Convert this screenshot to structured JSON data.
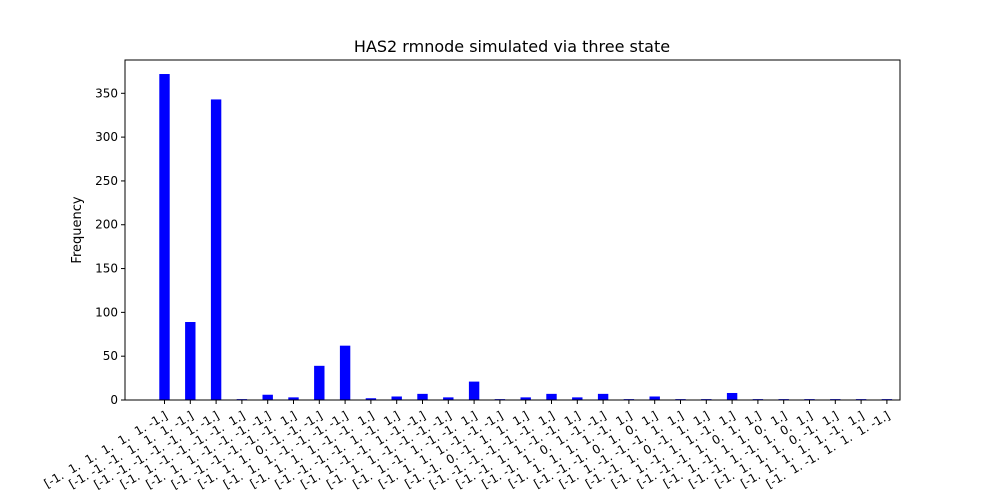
{
  "chart_data": {
    "type": "bar",
    "title": "HAS2 rmnode simulated via three state",
    "xlabel": "",
    "ylabel": "Frequency",
    "ylim": [
      0,
      388
    ],
    "yticks": [
      0,
      50,
      100,
      150,
      200,
      250,
      300,
      350
    ],
    "bar_color": "#0000ff",
    "grid": false,
    "categories": [
      "[-1.  1.  1.  1.  1.  1. -1.]",
      "[-1. -1. -1.  1.  1.  1. -1.]",
      "[-1. -1. -1. -1. -1.  1. -1.]",
      "[-1.  1. -1. -1. -1. -1.  1.]",
      "[-1.  1.  1. -1. -1. -1. -1.]",
      "[-1. -1. -1. -1. -1. -1.  1.]",
      "[-1.  1.  1.  0. -1. -1. -1.]",
      "[-1.  1.  1. -1. -1. -1. -1.]",
      "[-1.  1.  1.  1. -1. -1.  1.]",
      "[-1. -1. -1. -1.  1. -1.  1.]",
      "[-1.  1. -1. -1.  1. -1. -1.]",
      "[-1.  1.  1. -1. -1. -1. -1.]",
      "[-1.  1. -1.  1. -1. -1.  1.]",
      "[-1.  1.  1.  1. -1. -1. -1.]",
      "[-1. -1.  0. -1.  1.  1.  1.]",
      "[-1. -1. -1. -1. -1. -1.  1.]",
      "[-1. -1.  1.  1. -1. -1.  1.]",
      "[-1. -1.  1.  0.  1. -1. -1.]",
      "[-1.  1.  1.  1.  1. -1.  1.]",
      "[-1. -1. -1.  0.  1.  0.  1.]",
      "[-1.  1. -1. -1. -1.  1.  1.]",
      "[-1. -1.  1.  0. -1.  1.  1.]",
      "[-1.  1. -1.  1.  1. -1.  1.]",
      "[-1. -1. -1.  1.  0.  1.  1.]",
      "[-1.  1. -1.  1.  1.  0.  1.]",
      "[-1. -1.  1. -1.  1.  0.  1.]",
      "[-1.  1.  1.  1.  0. -1.  1.]",
      "[-1.  1.  1.  1.  1. -1.  1.]",
      "[-1.  1. -1.  1.  1.  1. -1.]"
    ],
    "values": [
      372,
      89,
      343,
      1,
      6,
      3,
      39,
      62,
      2,
      4,
      7,
      3,
      21,
      1,
      3,
      7,
      3,
      7,
      1,
      4,
      1,
      1,
      8,
      1,
      1,
      1,
      1,
      1,
      1
    ]
  }
}
